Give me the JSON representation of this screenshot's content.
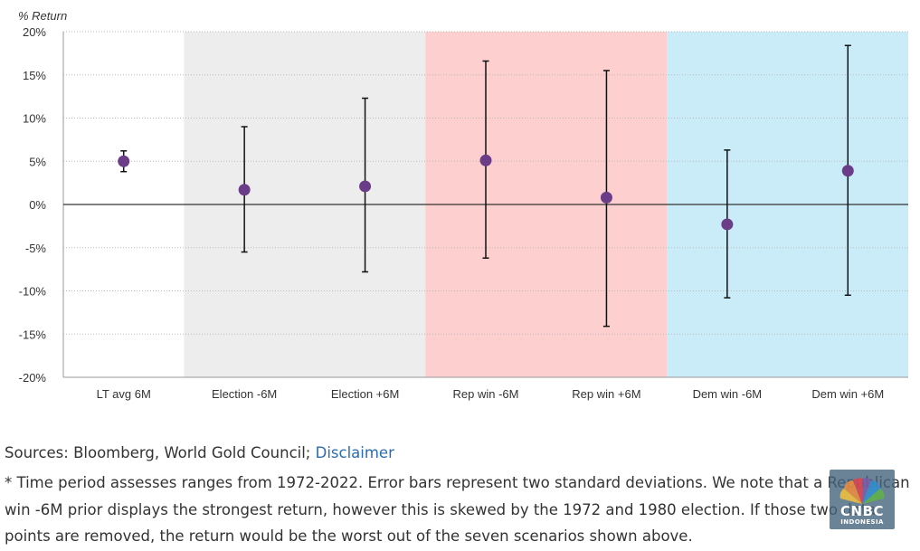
{
  "chart_data": {
    "type": "scatter",
    "variant": "points with error bars",
    "ylabel": "% Return",
    "ylim": [
      -20,
      20
    ],
    "yticks": [
      20,
      15,
      10,
      5,
      0,
      -5,
      -10,
      -15,
      -20
    ],
    "ytick_labels": [
      "20%",
      "15%",
      "10%",
      "5%",
      "0%",
      "-5%",
      "-10%",
      "-15%",
      "-20%"
    ],
    "grid": "horizontal dotted",
    "categories": [
      "LT avg 6M",
      "Election -6M",
      "Election +6M",
      "Rep win -6M",
      "Rep win +6M",
      "Dem win -6M",
      "Dem win +6M"
    ],
    "values": [
      5.0,
      1.7,
      2.1,
      5.1,
      0.8,
      -2.3,
      3.9
    ],
    "error_low": [
      3.8,
      -5.5,
      -7.8,
      -6.2,
      -14.1,
      -10.8,
      -10.5
    ],
    "error_high": [
      6.2,
      9.0,
      12.3,
      16.6,
      15.5,
      6.3,
      18.4
    ],
    "bands": [
      {
        "from": 1,
        "to": 2,
        "color": "#ededed"
      },
      {
        "from": 3,
        "to": 4,
        "color": "#fdcfce"
      },
      {
        "from": 5,
        "to": 6,
        "color": "#caecf8"
      }
    ],
    "colors": {
      "point": "#6b3c87",
      "error_bar": "#111111",
      "zero_line": "#333333",
      "grid": "#bbbbbb",
      "axis": "#999999"
    }
  },
  "caption": {
    "sources_prefix": "Sources: Bloomberg, World Gold Council; ",
    "disclaimer_link": "Disclaimer",
    "note": "* Time period assesses ranges from 1972-2022. Error bars represent two standard deviations. We note that a Republican win -6M prior displays the strongest return, however this is skewed by the 1972 and 1980 election. If those two data points are removed, the return would be the worst out of the seven scenarios shown above."
  },
  "watermark": {
    "brand": "CNBC",
    "sub": "INDONESIA"
  }
}
